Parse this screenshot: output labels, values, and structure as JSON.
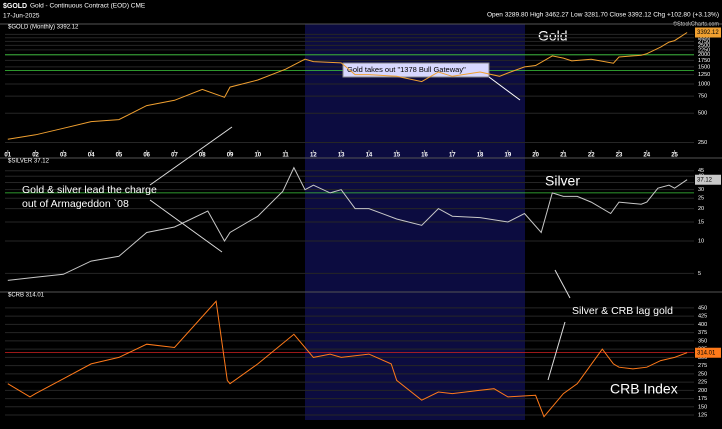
{
  "header": {
    "symbol": "$GOLD",
    "description": "Gold - Continuous Contract (EOD) CME",
    "date": "17-Jun-2025",
    "quote": "Open 3289.80 High 3462.27 Low 3281.70 Close 3392.12 Chg +102.80 (+3.13%)",
    "credit": "©StockCharts.com"
  },
  "chart_data": [
    {
      "type": "line",
      "log_scale": true,
      "grid": true,
      "x": [
        2001,
        2002,
        2003,
        2004,
        2005,
        2006,
        2007,
        2008,
        2008.8,
        2009,
        2010,
        2011,
        2011.7,
        2012,
        2013,
        2013.5,
        2014,
        2015,
        2015.9,
        2016.5,
        2017,
        2018,
        2018.7,
        2019,
        2019.6,
        2020,
        2020.6,
        2021,
        2021.3,
        2022,
        2022.8,
        2023,
        2023.8,
        2024,
        2024.5,
        2024.8,
        2025,
        2025.45
      ],
      "series": [
        {
          "name": "$GOLD (Monthly) 3392.12",
          "color": "#f0a030",
          "values": [
            270,
            300,
            350,
            410,
            430,
            600,
            680,
            880,
            730,
            930,
            1100,
            1420,
            1800,
            1700,
            1650,
            1250,
            1250,
            1200,
            1060,
            1330,
            1200,
            1330,
            1200,
            1300,
            1500,
            1550,
            1950,
            1850,
            1730,
            1800,
            1640,
            1900,
            1980,
            2050,
            2400,
            2700,
            2800,
            3392.12
          ]
        }
      ],
      "ylim": [
        230,
        3600
      ],
      "yticks": [
        250,
        500,
        750,
        1000,
        1250,
        1500,
        1750,
        2000,
        2250,
        2500,
        2750,
        3000,
        3250
      ],
      "xlim": [
        2000.9,
        2025.7
      ],
      "xticks": [
        {
          "value": 2001,
          "label": "01"
        },
        {
          "value": 2002,
          "label": "02"
        },
        {
          "value": 2003,
          "label": "03"
        },
        {
          "value": 2004,
          "label": "04"
        },
        {
          "value": 2005,
          "label": "05"
        },
        {
          "value": 2006,
          "label": "06"
        },
        {
          "value": 2007,
          "label": "07"
        },
        {
          "value": 2008,
          "label": "08"
        },
        {
          "value": 2009,
          "label": "09"
        },
        {
          "value": 2010,
          "label": "10"
        },
        {
          "value": 2011,
          "label": "11"
        },
        {
          "value": 2012,
          "label": "12"
        },
        {
          "value": 2013,
          "label": "13"
        },
        {
          "value": 2014,
          "label": "14"
        },
        {
          "value": 2015,
          "label": "15"
        },
        {
          "value": 2016,
          "label": "16"
        },
        {
          "value": 2017,
          "label": "17"
        },
        {
          "value": 2018,
          "label": "18"
        },
        {
          "value": 2019,
          "label": "19"
        },
        {
          "value": 2020,
          "label": "20"
        },
        {
          "value": 2021,
          "label": "21"
        },
        {
          "value": 2022,
          "label": "22"
        },
        {
          "value": 2023,
          "label": "23"
        },
        {
          "value": 2024,
          "label": "24"
        },
        {
          "value": 2025,
          "label": "25"
        }
      ],
      "reference_lines": [
        {
          "value": 1378,
          "color": "#3cc83c"
        },
        {
          "value": 2000,
          "color": "#3cc83c"
        }
      ],
      "annotations": [
        "Gold",
        "Gold takes out \"1378 Bull Gateway\""
      ]
    },
    {
      "type": "line",
      "log_scale": true,
      "grid": true,
      "x": [
        2001,
        2002,
        2003,
        2004,
        2005,
        2006,
        2007,
        2008.2,
        2008.8,
        2009,
        2010,
        2010.9,
        2011.3,
        2011.7,
        2012,
        2012.6,
        2013,
        2013.5,
        2014,
        2015,
        2015.9,
        2016.5,
        2017,
        2018,
        2019,
        2019.6,
        2020.2,
        2020.6,
        2021,
        2021.5,
        2022,
        2022.7,
        2023,
        2023.8,
        2024,
        2024.4,
        2024.8,
        2025,
        2025.45
      ],
      "series": [
        {
          "name": "$SILVER 37.12",
          "color": "#c8c8c8",
          "values": [
            4.3,
            4.6,
            4.9,
            6.5,
            7.2,
            12,
            13.5,
            19,
            10,
            12,
            17,
            29,
            48,
            30,
            33,
            28,
            30,
            20,
            20,
            16,
            14,
            20,
            17,
            16.5,
            15,
            18,
            12,
            28,
            26,
            26,
            23,
            18,
            23,
            22,
            23,
            31,
            33,
            31,
            37.12
          ]
        }
      ],
      "ylim": [
        3.5,
        52
      ],
      "yticks": [
        5,
        10,
        15,
        20,
        25,
        30,
        35,
        40,
        45
      ],
      "reference_lines": [
        {
          "value": 28,
          "color": "#3cc83c"
        }
      ],
      "annotations": [
        "Silver",
        [
          "Gold & silver lead the charge",
          "out of Armageddon `08"
        ]
      ]
    },
    {
      "type": "line",
      "log_scale": false,
      "grid": true,
      "x": [
        2001,
        2001.8,
        2002,
        2003,
        2004,
        2005,
        2006,
        2007,
        2008.5,
        2008.9,
        2009,
        2010,
        2011.3,
        2012,
        2012.6,
        2013,
        2014,
        2014.8,
        2015,
        2015.9,
        2016.5,
        2017,
        2018,
        2018.5,
        2019,
        2020,
        2020.3,
        2021,
        2021.5,
        2022.4,
        2022.8,
        2023,
        2023.5,
        2024,
        2024.5,
        2025,
        2025.45
      ],
      "series": [
        {
          "name": "$CRB 314.01",
          "color": "#ff7a1a",
          "values": [
            220,
            180,
            190,
            235,
            280,
            300,
            340,
            330,
            470,
            230,
            220,
            280,
            370,
            300,
            310,
            300,
            310,
            280,
            230,
            170,
            195,
            190,
            200,
            205,
            180,
            185,
            120,
            190,
            220,
            325,
            280,
            270,
            265,
            270,
            290,
            300,
            314.01
          ]
        }
      ],
      "ylim": [
        110,
        480
      ],
      "yticks": [
        125,
        150,
        175,
        200,
        225,
        250,
        275,
        300,
        325,
        350,
        375,
        400,
        425,
        450
      ],
      "reference_lines": [
        {
          "value": 315,
          "color": "#d02020"
        }
      ],
      "annotations": [
        "CRB Index",
        "Silver & CRB lag gold"
      ]
    }
  ]
}
